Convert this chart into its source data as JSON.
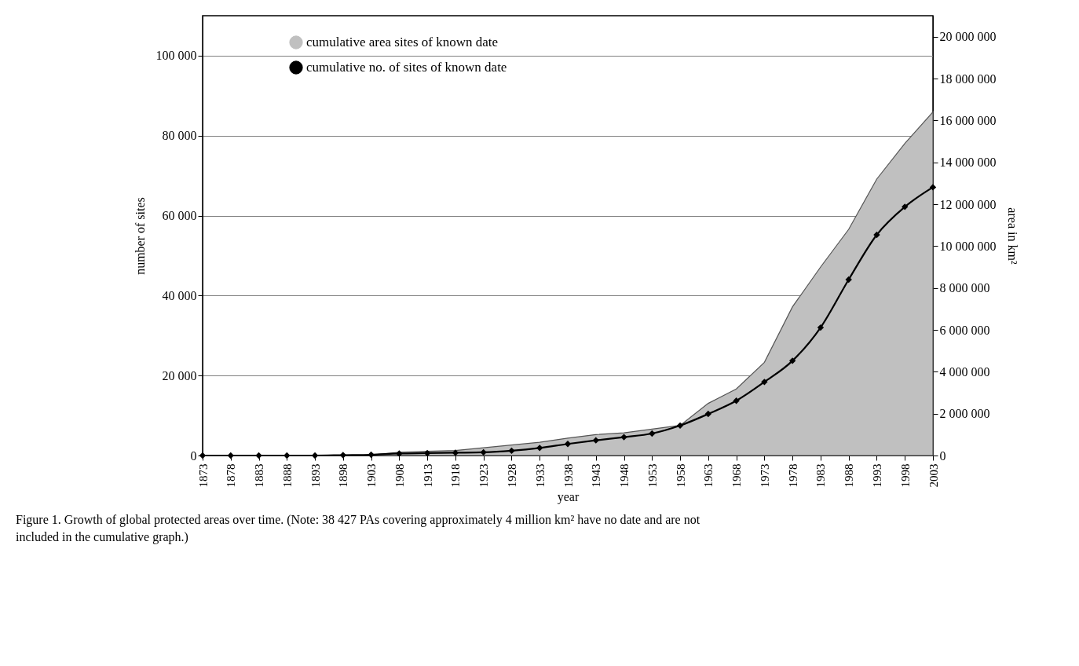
{
  "chart_data": {
    "type": "line",
    "xlabel": "year",
    "ylabel": "number of sites",
    "y2label": "area in km²",
    "categories": [
      "1873",
      "1878",
      "1883",
      "1888",
      "1893",
      "1898",
      "1903",
      "1908",
      "1913",
      "1918",
      "1923",
      "1928",
      "1933",
      "1938",
      "1943",
      "1948",
      "1953",
      "1958",
      "1963",
      "1968",
      "1973",
      "1978",
      "1983",
      "1988",
      "1993",
      "1998",
      "2003"
    ],
    "series": [
      {
        "name": "cumulative area sites of known date",
        "type": "area",
        "axis": "y2",
        "color": "#c0c0c0",
        "values": [
          0,
          0,
          0,
          0,
          0,
          0,
          20000,
          160000,
          200000,
          240000,
          370000,
          500000,
          630000,
          830000,
          1000000,
          1080000,
          1260000,
          1440000,
          2490000,
          3180000,
          4450000,
          7100000,
          9000000,
          10800000,
          13200000,
          14900000,
          16400000
        ]
      },
      {
        "name": "cumulative no. of sites of known date",
        "color": "#000000",
        "marker": "diamond",
        "values": [
          0,
          0,
          0,
          0,
          0,
          100,
          200,
          500,
          600,
          700,
          800,
          1200,
          1900,
          2900,
          3800,
          4600,
          5500,
          7500,
          10400,
          13700,
          18400,
          23700,
          32000,
          44000,
          55200,
          62200,
          67100
        ]
      }
    ],
    "ylim": [
      0,
      110000
    ],
    "yticks": [
      0,
      {
        "value": 20000,
        "label": "20 000"
      },
      {
        "value": 40000,
        "label": "40 000"
      },
      {
        "value": 60000,
        "label": "60 000"
      },
      {
        "value": 80000,
        "label": "80 000"
      },
      {
        "value": 100000,
        "label": "100 000"
      }
    ],
    "y2lim": [
      0,
      21000000
    ],
    "y2ticks": [
      0,
      {
        "value": 2000000,
        "label": "2 000 000"
      },
      {
        "value": 4000000,
        "label": "4 000 000"
      },
      {
        "value": 6000000,
        "label": "6 000 000"
      },
      {
        "value": 8000000,
        "label": "8 000 000"
      },
      {
        "value": 10000000,
        "label": "10 000 000"
      },
      {
        "value": 12000000,
        "label": "12 000 000"
      },
      {
        "value": 14000000,
        "label": "14 000 000"
      },
      {
        "value": 16000000,
        "label": "16 000 000"
      },
      {
        "value": 18000000,
        "label": "18 000 000"
      },
      {
        "value": 20000000,
        "label": "20 000 000"
      }
    ],
    "grid": "y",
    "legend": "top left",
    "annotations": [
      "Figure 1. Growth of global protected areas over time. (Note: 38 427 PAs covering approximately 4 million km² have no date and are not included in the cumulative graph.)"
    ]
  }
}
